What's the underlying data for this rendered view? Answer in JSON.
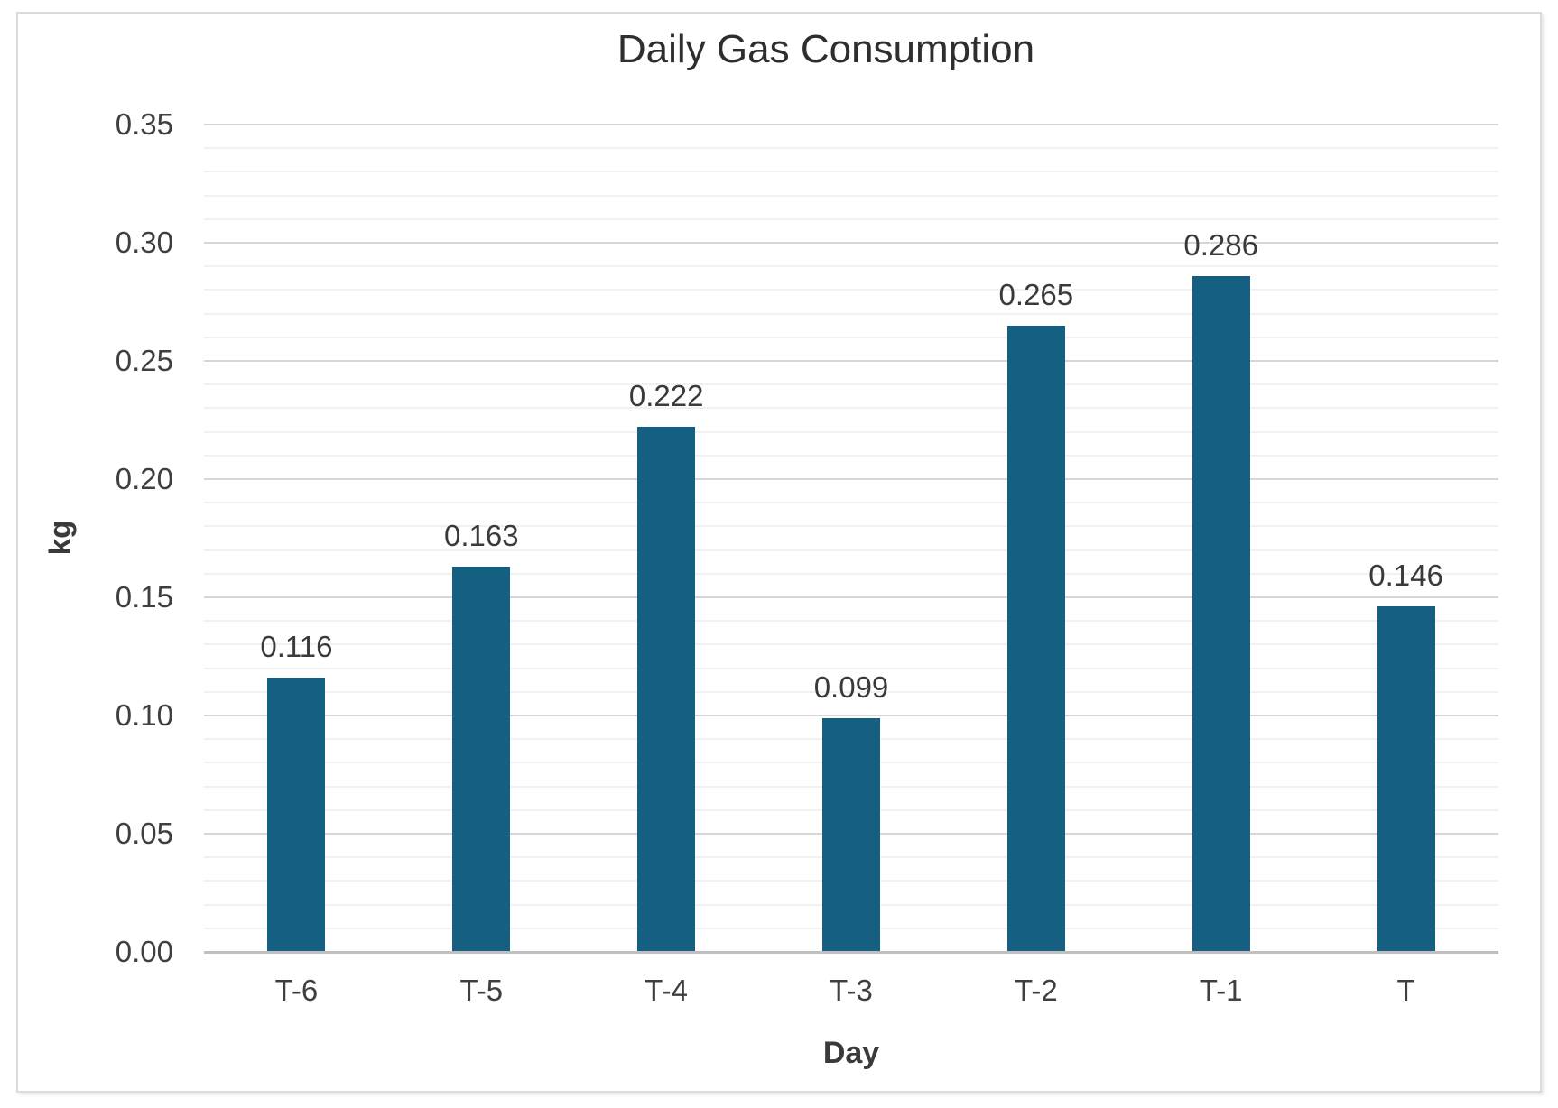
{
  "chart_data": {
    "type": "bar",
    "title": "Daily Gas Consumption",
    "xlabel": "Day",
    "ylabel": "kg",
    "categories": [
      "T-6",
      "T-5",
      "T-4",
      "T-3",
      "T-2",
      "T-1",
      "T"
    ],
    "values": [
      0.116,
      0.163,
      0.222,
      0.099,
      0.265,
      0.286,
      0.146
    ],
    "data_labels": [
      "0.116",
      "0.163",
      "0.222",
      "0.099",
      "0.265",
      "0.286",
      "0.146"
    ],
    "ylim": [
      0,
      0.35
    ],
    "y_major_step": 0.05,
    "y_minor_step": 0.01,
    "y_tick_labels": [
      "0.00",
      "0.05",
      "0.10",
      "0.15",
      "0.20",
      "0.25",
      "0.30",
      "0.35"
    ],
    "grid": true,
    "legend": "none",
    "colors": {
      "bar": "#156082",
      "title_text": "#2e2e2e",
      "axis_text": "#3f3f3f",
      "major_gridline": "#d6d6d6",
      "minor_gridline": "#f1f1f1",
      "axis_line": "#bfbfbf",
      "frame_border": "#dbdbdb"
    }
  }
}
